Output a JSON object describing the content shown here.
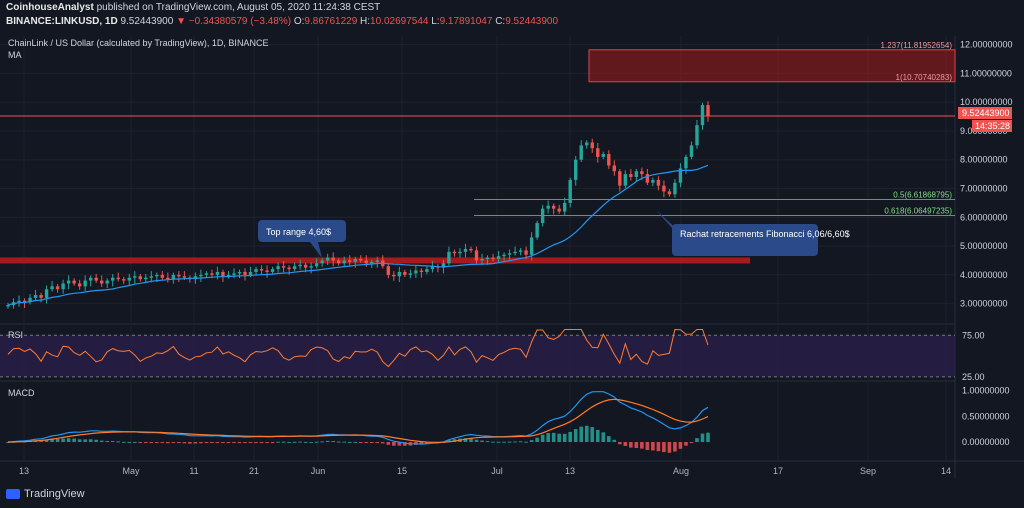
{
  "header": {
    "publisher": "CoinhouseAnalyst",
    "published_text": "published on TradingView.com, August 05, 2020 11:24:38 CEST",
    "symbol": "BINANCE:LINKUSD, 1D",
    "last": "9.52443900",
    "change": "−0.34380579 (−3.48%)",
    "o_label": "O:",
    "o": "9.86761229",
    "h_label": "H:",
    "h": "10.02697544",
    "l_label": "L:",
    "l": "9.17891047",
    "c_label": "C:",
    "c": "9.52443900"
  },
  "footer": {
    "brand": "TradingView"
  },
  "colors": {
    "bg": "#131722",
    "up": "#26a69a",
    "down": "#ef5350",
    "ma": "#2196f3",
    "support": "#a31b1b",
    "fib": "#3bb143",
    "rsi": "#ff7b2e",
    "macd": "#2196f3",
    "signal": "#ff7b2e",
    "callout": "#2a4a8a"
  },
  "chart_data": [
    {
      "type": "candlestick",
      "title": "ChainLink / US Dollar (calculated by TradingView), 1D, BINANCE",
      "subtitle": "MA",
      "y_ticks": [
        "12.00000000",
        "11.00000000",
        "10.00000000",
        "9.00000000",
        "8.00000000",
        "7.00000000",
        "6.00000000",
        "5.00000000",
        "4.00000000",
        "3.00000000"
      ],
      "ylim": [
        2.5,
        12.3
      ],
      "x_ticks": [
        "13",
        "May",
        "11",
        "21",
        "Jun",
        "15",
        "Jul",
        "13",
        "Aug",
        "17",
        "Sep",
        "14"
      ],
      "last_price_label": "9.52443900",
      "countdown_label": "14:35:28",
      "fib_labels": [
        {
          "label": "1.237(11.81952654)",
          "value": 11.82
        },
        {
          "label": "1(10.70740283)",
          "value": 10.71
        },
        {
          "label": "0.5(6.61868795)",
          "value": 6.62
        },
        {
          "label": "0.618(6.06497235)",
          "value": 6.06
        }
      ],
      "support_level": 4.5,
      "annotations": [
        {
          "text": "Top range 4,60$"
        },
        {
          "text": "Rachat retracements Fibonacci 6,06/6,60$"
        }
      ],
      "closes": [
        2.95,
        3.05,
        3.1,
        3.05,
        3.2,
        3.3,
        3.2,
        3.5,
        3.6,
        3.5,
        3.7,
        3.8,
        3.7,
        3.6,
        3.8,
        3.9,
        3.8,
        3.7,
        3.8,
        3.9,
        3.85,
        3.8,
        3.9,
        3.95,
        3.85,
        3.9,
        3.95,
        4.0,
        3.9,
        3.85,
        4.0,
        3.95,
        3.9,
        3.85,
        3.95,
        4.0,
        4.05,
        4.0,
        4.1,
        3.95,
        4.0,
        4.05,
        4.1,
        4.0,
        4.1,
        4.2,
        4.15,
        4.1,
        4.2,
        4.3,
        4.25,
        4.2,
        4.3,
        4.35,
        4.25,
        4.3,
        4.4,
        4.5,
        4.6,
        4.5,
        4.4,
        4.5,
        4.45,
        4.55,
        4.5,
        4.4,
        4.45,
        4.5,
        4.3,
        4.0,
        3.95,
        4.1,
        4.0,
        4.05,
        4.15,
        4.1,
        4.2,
        4.3,
        4.25,
        4.4,
        4.8,
        4.75,
        4.8,
        4.9,
        4.85,
        4.5,
        4.55,
        4.6,
        4.55,
        4.65,
        4.7,
        4.75,
        4.8,
        4.85,
        4.7,
        5.3,
        5.8,
        6.3,
        6.4,
        6.3,
        6.2,
        6.5,
        7.3,
        8.0,
        8.5,
        8.6,
        8.4,
        8.1,
        8.2,
        7.8,
        7.6,
        7.1,
        7.5,
        7.4,
        7.6,
        7.5,
        7.2,
        7.3,
        7.1,
        6.9,
        6.8,
        7.2,
        7.7,
        8.1,
        8.5,
        9.2,
        9.9,
        9.52
      ]
    },
    {
      "type": "line",
      "title": "RSI",
      "y_ticks": [
        "75.00",
        "25.00"
      ],
      "ylim": [
        20,
        85
      ]
    },
    {
      "type": "histogram",
      "title": "MACD",
      "y_ticks": [
        "1.00000000",
        "0.50000000",
        "0.00000000"
      ],
      "ylim": [
        -0.35,
        1.15
      ]
    }
  ]
}
